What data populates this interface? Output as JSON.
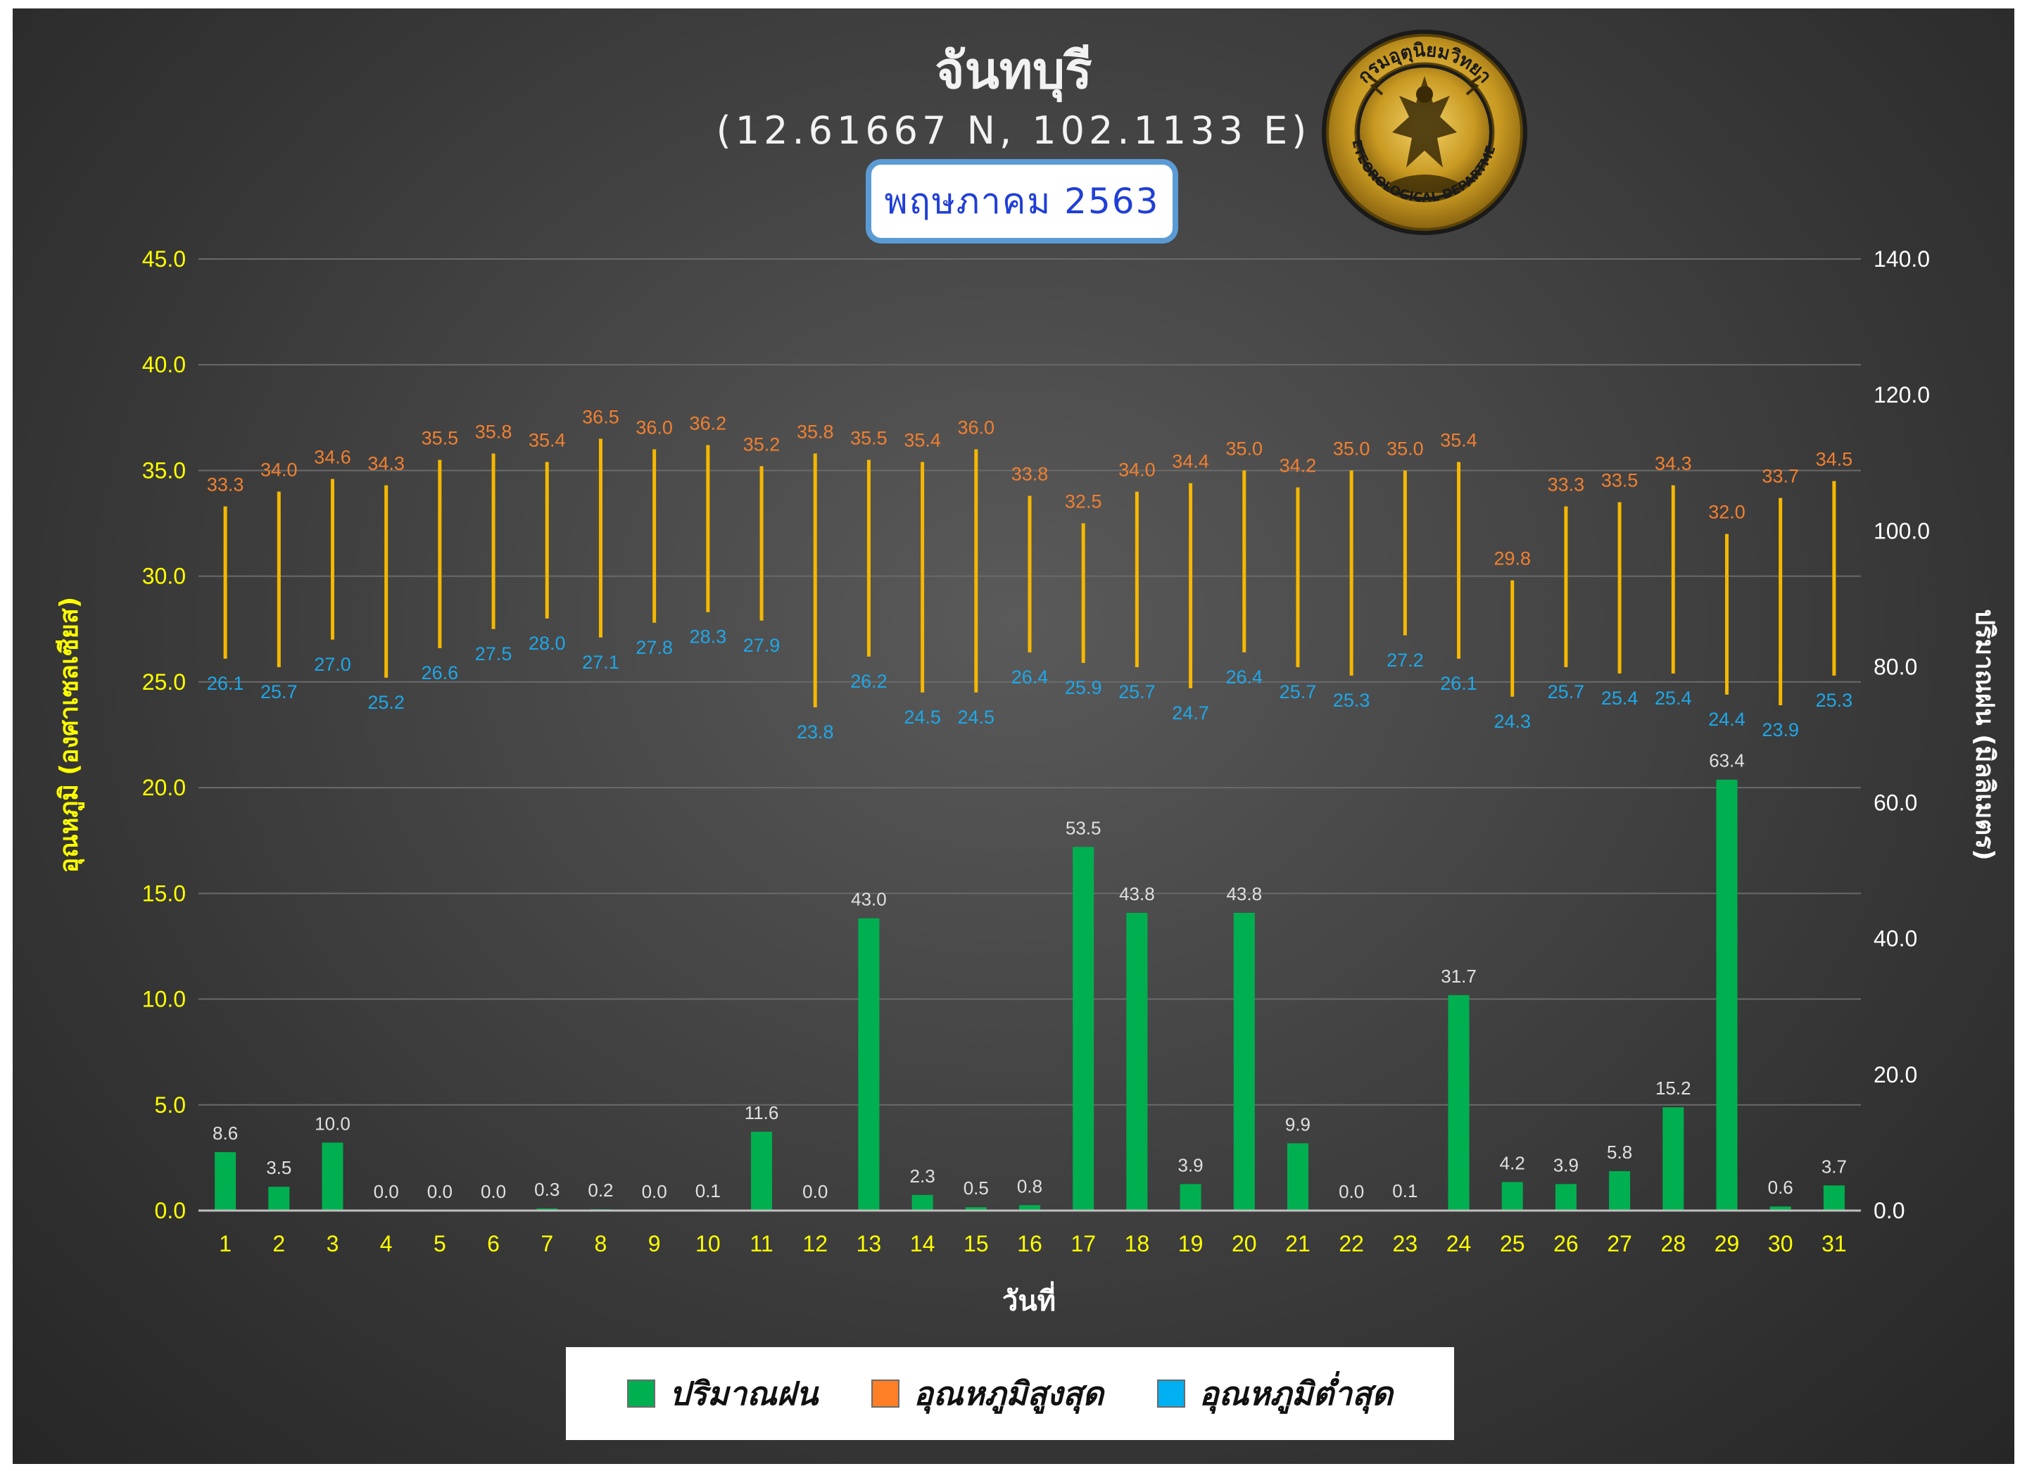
{
  "header": {
    "title": "จันทบุรี",
    "coordinates": "(12.61667 N, 102.1133 E)",
    "month": "พฤษภาคม 2563",
    "seal_text": "กรมอุตุนิยมวิทยา METEOROLOGICAL DEPARTMENT"
  },
  "chart_data": {
    "type": "bar",
    "xlabel": "วันที่",
    "ylabel_left": "อุณหภูมิ (องศาเซลเซียส)",
    "ylabel_right": "ปริมาณฝน (มิลลิเมตร)",
    "y_left_lim": [
      0,
      45
    ],
    "y_left_ticks": [
      "0.0",
      "5.0",
      "10.0",
      "15.0",
      "20.0",
      "25.0",
      "30.0",
      "35.0",
      "40.0",
      "45.0"
    ],
    "y_right_lim": [
      0,
      140
    ],
    "y_right_ticks": [
      "0.0",
      "20.0",
      "40.0",
      "60.0",
      "80.0",
      "100.0",
      "120.0",
      "140.0"
    ],
    "grid": true,
    "legend_position": "bottom",
    "categories": [
      "1",
      "2",
      "3",
      "4",
      "5",
      "6",
      "7",
      "8",
      "9",
      "10",
      "11",
      "12",
      "13",
      "14",
      "15",
      "16",
      "17",
      "18",
      "19",
      "20",
      "21",
      "22",
      "23",
      "24",
      "25",
      "26",
      "27",
      "28",
      "29",
      "30",
      "31"
    ],
    "series": [
      {
        "name": "ปริมาณฝน",
        "type": "bar",
        "axis": "right",
        "color": "#00b050",
        "values": [
          8.6,
          3.5,
          10.0,
          0.0,
          0.0,
          0.0,
          0.3,
          0.2,
          0.0,
          0.1,
          11.6,
          0.0,
          43.0,
          2.3,
          0.5,
          0.8,
          53.5,
          43.8,
          3.9,
          43.8,
          9.9,
          0.0,
          0.1,
          31.7,
          4.2,
          3.9,
          5.8,
          15.2,
          63.4,
          0.6,
          3.7
        ]
      },
      {
        "name": "อุณหภูมิสูงสุด",
        "type": "range-high",
        "axis": "left",
        "color": "#ff7f27",
        "values": [
          33.3,
          34.0,
          34.6,
          34.3,
          35.5,
          35.8,
          35.4,
          36.5,
          36.0,
          36.2,
          35.2,
          35.8,
          35.5,
          35.4,
          36.0,
          33.8,
          32.5,
          34.0,
          34.4,
          35.0,
          34.2,
          35.0,
          35.0,
          35.4,
          29.8,
          33.3,
          33.5,
          34.3,
          32.0,
          33.7,
          34.5
        ]
      },
      {
        "name": "อุณหภูมิต่ำสุด",
        "type": "range-low",
        "axis": "left",
        "color": "#00b0f0",
        "values": [
          26.1,
          25.7,
          27.0,
          25.2,
          26.6,
          27.5,
          28.0,
          27.1,
          27.8,
          28.3,
          27.9,
          23.8,
          26.2,
          24.5,
          24.5,
          26.4,
          25.9,
          25.7,
          24.7,
          26.4,
          25.7,
          25.3,
          27.2,
          26.1,
          24.3,
          25.7,
          25.4,
          25.4,
          24.4,
          23.9,
          25.3
        ]
      }
    ]
  },
  "colors": {
    "rain": "#00b050",
    "tmax_label": "#f08030",
    "tmin_label": "#1ea7e8",
    "range_line": "#f5b800",
    "axis_left_text": "#ffff00",
    "axis_right_text": "#ffffff",
    "rain_label": "#e0e0e0",
    "grid": "#6a6a6a"
  },
  "legend": {
    "rain": "ปริมาณฝน",
    "tmax": "อุณหภูมิสูงสุด",
    "tmin": "อุณหภูมิต่ำสุด"
  }
}
